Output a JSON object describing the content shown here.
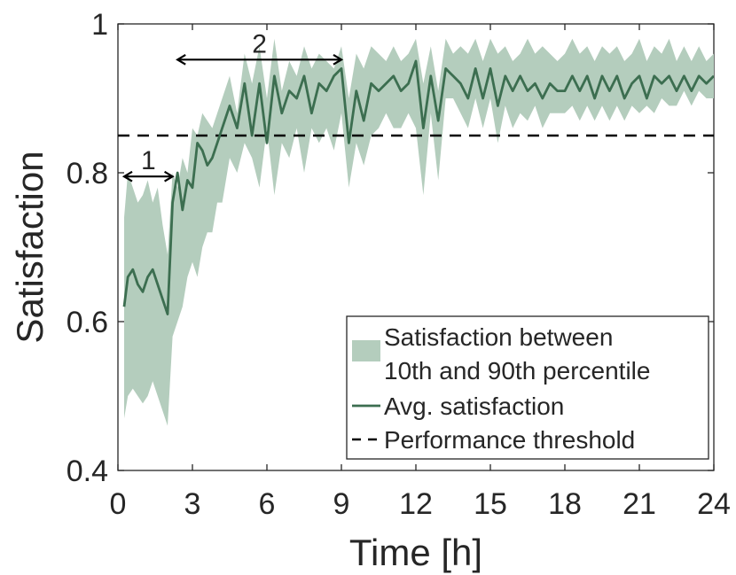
{
  "colors": {
    "band": "#b4cdbd",
    "line": "#3c6e50",
    "threshold": "#000000",
    "axis": "#262626"
  },
  "chart_data": {
    "type": "line",
    "title": "",
    "xlabel": "Time [h]",
    "ylabel": "Satisfaction",
    "xlim": [
      0,
      24
    ],
    "ylim": [
      0.4,
      1.0
    ],
    "xticks": [
      0,
      3,
      6,
      9,
      12,
      15,
      18,
      21,
      24
    ],
    "xtick_labels": [
      "0",
      "3",
      "6",
      "9",
      "12",
      "15",
      "18",
      "21",
      "24"
    ],
    "yticks": [
      0.4,
      0.6,
      0.8,
      1.0
    ],
    "ytick_labels": [
      "0.4",
      "0.6",
      "0.8",
      "1"
    ],
    "grid": false,
    "series": [
      {
        "name": "Satisfaction between 10th and 90th percentile",
        "kind": "band",
        "x": [
          0.25,
          0.4,
          0.6,
          0.8,
          1.0,
          1.2,
          1.4,
          1.6,
          1.8,
          2.0,
          2.2,
          2.4,
          2.6,
          2.8,
          3.0,
          3.2,
          3.4,
          3.6,
          3.8,
          4.0,
          4.2,
          4.5,
          4.8,
          5.1,
          5.4,
          5.7,
          6.0,
          6.3,
          6.6,
          6.9,
          7.2,
          7.5,
          7.8,
          8.1,
          8.4,
          8.7,
          9.0,
          9.3,
          9.6,
          9.9,
          10.2,
          10.5,
          10.8,
          11.1,
          11.4,
          11.7,
          12.0,
          12.3,
          12.6,
          12.9,
          13.2,
          13.5,
          13.8,
          14.1,
          14.4,
          14.7,
          15.0,
          15.3,
          15.6,
          15.9,
          16.2,
          16.5,
          16.8,
          17.1,
          17.4,
          17.7,
          18.0,
          18.3,
          18.6,
          18.9,
          19.2,
          19.5,
          19.8,
          20.1,
          20.4,
          20.7,
          21.0,
          21.3,
          21.6,
          21.9,
          22.2,
          22.5,
          22.8,
          23.1,
          23.4,
          23.7,
          24.0
        ],
        "lower": [
          0.47,
          0.5,
          0.51,
          0.5,
          0.49,
          0.5,
          0.52,
          0.5,
          0.48,
          0.46,
          0.58,
          0.6,
          0.62,
          0.66,
          0.68,
          0.66,
          0.7,
          0.72,
          0.72,
          0.76,
          0.76,
          0.82,
          0.8,
          0.84,
          0.82,
          0.78,
          0.86,
          0.77,
          0.84,
          0.82,
          0.86,
          0.8,
          0.86,
          0.84,
          0.86,
          0.83,
          0.88,
          0.78,
          0.84,
          0.81,
          0.85,
          0.86,
          0.88,
          0.86,
          0.86,
          0.88,
          0.86,
          0.77,
          0.88,
          0.79,
          0.9,
          0.9,
          0.88,
          0.86,
          0.9,
          0.86,
          0.9,
          0.84,
          0.89,
          0.86,
          0.88,
          0.87,
          0.89,
          0.86,
          0.88,
          0.88,
          0.88,
          0.89,
          0.87,
          0.89,
          0.87,
          0.89,
          0.87,
          0.89,
          0.87,
          0.89,
          0.88,
          0.89,
          0.88,
          0.9,
          0.89,
          0.89,
          0.91,
          0.89,
          0.91,
          0.9,
          0.9
        ],
        "upper": [
          0.74,
          0.8,
          0.78,
          0.76,
          0.77,
          0.79,
          0.76,
          0.78,
          0.73,
          0.69,
          0.8,
          0.78,
          0.82,
          0.8,
          0.86,
          0.85,
          0.88,
          0.87,
          0.86,
          0.88,
          0.9,
          0.93,
          0.88,
          0.96,
          0.92,
          0.97,
          0.9,
          0.98,
          0.91,
          0.95,
          0.93,
          0.97,
          0.94,
          0.96,
          0.95,
          0.94,
          0.97,
          0.9,
          0.96,
          0.94,
          0.97,
          0.96,
          0.95,
          0.97,
          0.95,
          0.96,
          0.98,
          0.92,
          0.97,
          0.91,
          0.98,
          0.96,
          0.97,
          0.96,
          0.98,
          0.95,
          0.98,
          0.96,
          0.97,
          0.95,
          0.96,
          0.98,
          0.96,
          0.97,
          0.96,
          0.95,
          0.96,
          0.98,
          0.96,
          0.97,
          0.95,
          0.97,
          0.96,
          0.97,
          0.95,
          0.96,
          0.98,
          0.95,
          0.97,
          0.96,
          0.98,
          0.95,
          0.97,
          0.95,
          0.97,
          0.95,
          0.96
        ]
      },
      {
        "name": "Avg. satisfaction",
        "kind": "line",
        "x": [
          0.25,
          0.4,
          0.6,
          0.8,
          1.0,
          1.2,
          1.4,
          1.6,
          1.8,
          2.0,
          2.2,
          2.4,
          2.6,
          2.8,
          3.0,
          3.2,
          3.4,
          3.6,
          3.8,
          4.0,
          4.2,
          4.5,
          4.8,
          5.1,
          5.4,
          5.7,
          6.0,
          6.3,
          6.6,
          6.9,
          7.2,
          7.5,
          7.8,
          8.1,
          8.4,
          8.7,
          9.0,
          9.3,
          9.6,
          9.9,
          10.2,
          10.5,
          10.8,
          11.1,
          11.4,
          11.7,
          12.0,
          12.3,
          12.6,
          12.9,
          13.2,
          13.5,
          13.8,
          14.1,
          14.4,
          14.7,
          15.0,
          15.3,
          15.6,
          15.9,
          16.2,
          16.5,
          16.8,
          17.1,
          17.4,
          17.7,
          18.0,
          18.3,
          18.6,
          18.9,
          19.2,
          19.5,
          19.8,
          20.1,
          20.4,
          20.7,
          21.0,
          21.3,
          21.6,
          21.9,
          22.2,
          22.5,
          22.8,
          23.1,
          23.4,
          23.7,
          24.0
        ],
        "values": [
          0.62,
          0.66,
          0.67,
          0.65,
          0.64,
          0.66,
          0.67,
          0.65,
          0.63,
          0.61,
          0.76,
          0.8,
          0.75,
          0.79,
          0.78,
          0.84,
          0.83,
          0.81,
          0.82,
          0.84,
          0.86,
          0.89,
          0.86,
          0.92,
          0.85,
          0.92,
          0.84,
          0.93,
          0.88,
          0.91,
          0.9,
          0.93,
          0.88,
          0.92,
          0.91,
          0.93,
          0.94,
          0.84,
          0.91,
          0.87,
          0.92,
          0.91,
          0.92,
          0.93,
          0.91,
          0.92,
          0.95,
          0.86,
          0.93,
          0.87,
          0.94,
          0.93,
          0.92,
          0.9,
          0.94,
          0.9,
          0.94,
          0.89,
          0.93,
          0.91,
          0.93,
          0.91,
          0.92,
          0.9,
          0.92,
          0.91,
          0.91,
          0.93,
          0.91,
          0.93,
          0.9,
          0.93,
          0.91,
          0.93,
          0.9,
          0.92,
          0.93,
          0.9,
          0.93,
          0.92,
          0.93,
          0.91,
          0.93,
          0.91,
          0.93,
          0.92,
          0.93
        ]
      },
      {
        "name": "Performance threshold",
        "kind": "hline",
        "value": 0.85
      }
    ],
    "annotations": [
      {
        "label": "1",
        "x_from": 0.25,
        "x_to": 2.2,
        "y": 0.795
      },
      {
        "label": "2",
        "x_from": 2.4,
        "x_to": 9.0,
        "y": 0.952
      }
    ],
    "legend": {
      "placement": "bottom-right",
      "entries": [
        {
          "label_lines": [
            "Satisfaction between",
            "10th and 90th percentile"
          ],
          "style": "band"
        },
        {
          "label_lines": [
            "Avg. satisfaction"
          ],
          "style": "line"
        },
        {
          "label_lines": [
            "Performance threshold"
          ],
          "style": "dashed"
        }
      ]
    }
  }
}
